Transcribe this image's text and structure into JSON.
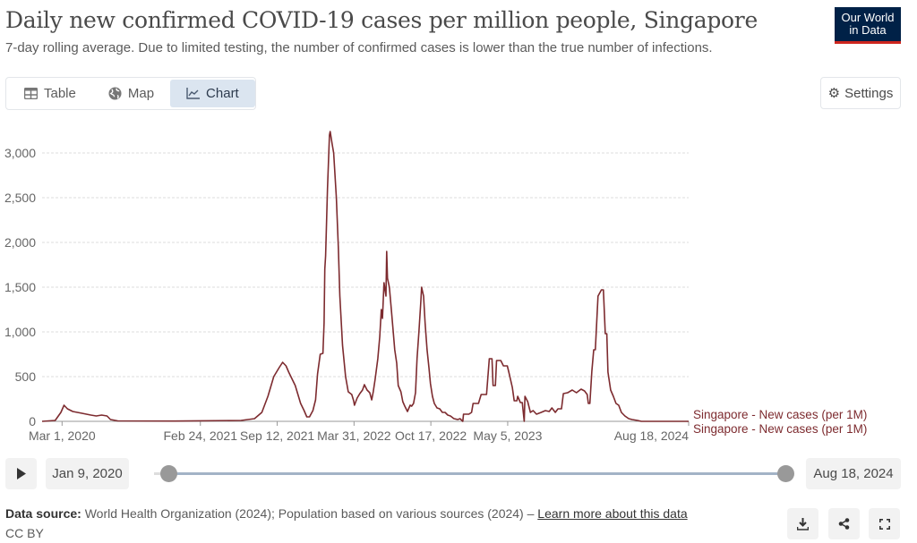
{
  "header": {
    "title": "Daily new confirmed COVID-19 cases per million people, Singapore",
    "subtitle": "7-day rolling average. Due to limited testing, the number of confirmed cases is lower than the true number of infections.",
    "logo_text": "Our World in Data",
    "logo_color": "#002147"
  },
  "tabs": [
    {
      "label": "Table",
      "icon": "table-icon"
    },
    {
      "label": "Map",
      "icon": "globe-icon"
    },
    {
      "label": "Chart",
      "icon": "line-chart-icon",
      "active": true
    }
  ],
  "settings_label": "Settings",
  "timeline": {
    "start": "Jan 9, 2020",
    "end": "Aug 18, 2024"
  },
  "footer": {
    "source_label": "Data source:",
    "source_text": " World Health Organization (2024); Population based on various sources (2024) – ",
    "learn_more": "Learn more about this data",
    "license": "CC BY"
  },
  "chart_data": {
    "type": "line",
    "title": "Daily new confirmed COVID-19 cases per million people, Singapore",
    "xlim": [
      "2020-01-09",
      "2024-08-18"
    ],
    "ylim": [
      0,
      3250
    ],
    "yticks": [
      0,
      500,
      1000,
      1500,
      2000,
      2500,
      3000
    ],
    "ytick_labels": [
      "0",
      "500",
      "1,000",
      "1,500",
      "2,000",
      "2,500",
      "3,000"
    ],
    "xticks": [
      "2020-03-01",
      "2021-02-24",
      "2021-09-12",
      "2022-03-31",
      "2022-10-17",
      "2023-05-05",
      "2024-08-18"
    ],
    "xtick_labels": [
      "Mar 1, 2020",
      "Feb 24, 2021",
      "Sep 12, 2021",
      "Mar 31, 2022",
      "Oct 17, 2022",
      "May 5, 2023",
      "Aug 18, 2024"
    ],
    "grid": true,
    "color": "#7d2b2f",
    "legend_labels": [
      "Singapore - New cases (per 1M)",
      "Singapore - New cases (per 1M)"
    ],
    "series": [
      {
        "name": "Singapore - New cases (per 1M)",
        "points": [
          [
            "2020-01-09",
            0
          ],
          [
            "2020-02-12",
            10
          ],
          [
            "2020-02-27",
            100
          ],
          [
            "2020-03-06",
            180
          ],
          [
            "2020-03-15",
            140
          ],
          [
            "2020-03-29",
            110
          ],
          [
            "2020-04-22",
            90
          ],
          [
            "2020-05-15",
            70
          ],
          [
            "2020-05-29",
            60
          ],
          [
            "2020-06-12",
            70
          ],
          [
            "2020-06-26",
            60
          ],
          [
            "2020-07-05",
            20
          ],
          [
            "2020-07-24",
            5
          ],
          [
            "2020-12-20",
            3
          ],
          [
            "2021-06-10",
            10
          ],
          [
            "2021-07-15",
            30
          ],
          [
            "2021-08-03",
            100
          ],
          [
            "2021-08-19",
            280
          ],
          [
            "2021-09-03",
            500
          ],
          [
            "2021-09-17",
            600
          ],
          [
            "2021-09-26",
            660
          ],
          [
            "2021-10-05",
            620
          ],
          [
            "2021-10-12",
            550
          ],
          [
            "2021-10-29",
            400
          ],
          [
            "2021-11-12",
            200
          ],
          [
            "2021-11-21",
            120
          ],
          [
            "2021-11-28",
            50
          ],
          [
            "2021-12-05",
            50
          ],
          [
            "2021-12-14",
            120
          ],
          [
            "2021-12-21",
            240
          ],
          [
            "2021-12-26",
            530
          ],
          [
            "2022-01-02",
            750
          ],
          [
            "2022-01-09",
            760
          ],
          [
            "2022-01-12",
            1100
          ],
          [
            "2022-01-14",
            1700
          ],
          [
            "2022-01-16",
            1850
          ],
          [
            "2022-01-21",
            2600
          ],
          [
            "2022-01-26",
            3200
          ],
          [
            "2022-01-28",
            3240
          ],
          [
            "2022-02-02",
            3100
          ],
          [
            "2022-02-06",
            3000
          ],
          [
            "2022-02-13",
            2500
          ],
          [
            "2022-02-18",
            1950
          ],
          [
            "2022-02-22",
            1400
          ],
          [
            "2022-03-01",
            850
          ],
          [
            "2022-03-09",
            500
          ],
          [
            "2022-03-16",
            330
          ],
          [
            "2022-03-25",
            300
          ],
          [
            "2022-03-30",
            230
          ],
          [
            "2022-04-01",
            180
          ],
          [
            "2022-04-08",
            260
          ],
          [
            "2022-04-15",
            310
          ],
          [
            "2022-04-22",
            350
          ],
          [
            "2022-04-27",
            410
          ],
          [
            "2022-05-04",
            350
          ],
          [
            "2022-05-11",
            320
          ],
          [
            "2022-05-16",
            240
          ],
          [
            "2022-05-20",
            330
          ],
          [
            "2022-05-25",
            470
          ],
          [
            "2022-06-01",
            700
          ],
          [
            "2022-06-06",
            950
          ],
          [
            "2022-06-10",
            1250
          ],
          [
            "2022-06-13",
            1150
          ],
          [
            "2022-06-17",
            1550
          ],
          [
            "2022-06-22",
            1400
          ],
          [
            "2022-06-24",
            1900
          ],
          [
            "2022-06-26",
            1600
          ],
          [
            "2022-07-01",
            1500
          ],
          [
            "2022-07-06",
            1250
          ],
          [
            "2022-07-10",
            1050
          ],
          [
            "2022-07-15",
            800
          ],
          [
            "2022-07-20",
            650
          ],
          [
            "2022-07-24",
            400
          ],
          [
            "2022-07-31",
            330
          ],
          [
            "2022-08-05",
            220
          ],
          [
            "2022-08-10",
            170
          ],
          [
            "2022-08-17",
            110
          ],
          [
            "2022-08-24",
            180
          ],
          [
            "2022-08-28",
            170
          ],
          [
            "2022-09-02",
            200
          ],
          [
            "2022-09-07",
            320
          ],
          [
            "2022-09-11",
            700
          ],
          [
            "2022-09-16",
            1000
          ],
          [
            "2022-09-21",
            1350
          ],
          [
            "2022-09-23",
            1500
          ],
          [
            "2022-09-28",
            1400
          ],
          [
            "2022-10-02",
            1100
          ],
          [
            "2022-10-07",
            800
          ],
          [
            "2022-10-12",
            600
          ],
          [
            "2022-10-16",
            420
          ],
          [
            "2022-10-21",
            280
          ],
          [
            "2022-10-26",
            200
          ],
          [
            "2022-11-02",
            150
          ],
          [
            "2022-11-09",
            140
          ],
          [
            "2022-11-16",
            100
          ],
          [
            "2022-11-23",
            100
          ],
          [
            "2022-11-30",
            70
          ],
          [
            "2022-12-07",
            60
          ],
          [
            "2022-12-16",
            30
          ],
          [
            "2022-12-26",
            20
          ],
          [
            "2023-01-01",
            30
          ],
          [
            "2023-01-08",
            0
          ],
          [
            "2023-01-10",
            80
          ],
          [
            "2023-01-24",
            80
          ],
          [
            "2023-01-31",
            100
          ],
          [
            "2023-02-04",
            200
          ],
          [
            "2023-02-18",
            200
          ],
          [
            "2023-02-25",
            300
          ],
          [
            "2023-03-11",
            300
          ],
          [
            "2023-03-18",
            700
          ],
          [
            "2023-03-25",
            700
          ],
          [
            "2023-03-28",
            400
          ],
          [
            "2023-04-03",
            400
          ],
          [
            "2023-04-06",
            680
          ],
          [
            "2023-04-17",
            680
          ],
          [
            "2023-04-24",
            620
          ],
          [
            "2023-05-04",
            620
          ],
          [
            "2023-05-08",
            550
          ],
          [
            "2023-05-17",
            380
          ],
          [
            "2023-05-22",
            230
          ],
          [
            "2023-05-29",
            230
          ],
          [
            "2023-05-31",
            280
          ],
          [
            "2023-06-07",
            210
          ],
          [
            "2023-06-12",
            210
          ],
          [
            "2023-06-17",
            0
          ],
          [
            "2023-06-19",
            280
          ],
          [
            "2023-06-26",
            220
          ],
          [
            "2023-07-03",
            100
          ],
          [
            "2023-07-10",
            120
          ],
          [
            "2023-07-19",
            80
          ],
          [
            "2023-07-31",
            100
          ],
          [
            "2023-08-11",
            120
          ],
          [
            "2023-08-21",
            110
          ],
          [
            "2023-08-28",
            150
          ],
          [
            "2023-09-06",
            100
          ],
          [
            "2023-09-13",
            140
          ],
          [
            "2023-09-22",
            140
          ],
          [
            "2023-09-27",
            310
          ],
          [
            "2023-10-08",
            320
          ],
          [
            "2023-10-20",
            350
          ],
          [
            "2023-10-31",
            320
          ],
          [
            "2023-11-12",
            360
          ],
          [
            "2023-11-21",
            340
          ],
          [
            "2023-11-28",
            300
          ],
          [
            "2023-12-01",
            200
          ],
          [
            "2023-12-05",
            200
          ],
          [
            "2023-12-10",
            560
          ],
          [
            "2023-12-15",
            800
          ],
          [
            "2023-12-19",
            800
          ],
          [
            "2023-12-26",
            1400
          ],
          [
            "2024-01-04",
            1470
          ],
          [
            "2024-01-09",
            1470
          ],
          [
            "2024-01-14",
            980
          ],
          [
            "2024-01-18",
            980
          ],
          [
            "2024-01-21",
            550
          ],
          [
            "2024-01-28",
            350
          ],
          [
            "2024-02-04",
            280
          ],
          [
            "2024-02-11",
            200
          ],
          [
            "2024-02-18",
            180
          ],
          [
            "2024-02-25",
            100
          ],
          [
            "2024-03-05",
            60
          ],
          [
            "2024-03-15",
            30
          ],
          [
            "2024-03-24",
            20
          ],
          [
            "2024-04-07",
            10
          ],
          [
            "2024-04-17",
            0
          ],
          [
            "2024-08-18",
            0
          ]
        ]
      }
    ]
  }
}
